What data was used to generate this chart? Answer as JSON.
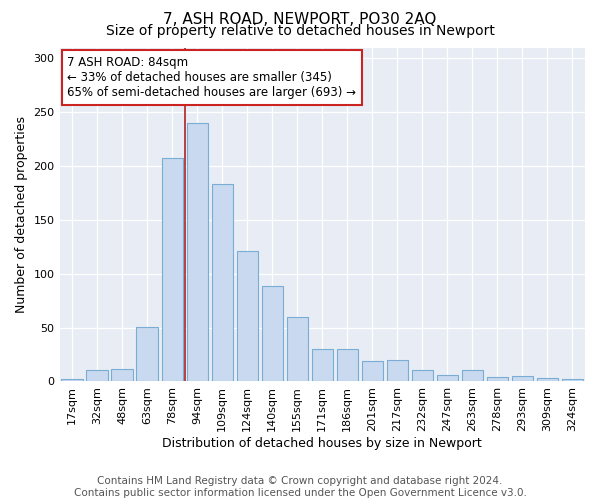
{
  "title": "7, ASH ROAD, NEWPORT, PO30 2AQ",
  "subtitle": "Size of property relative to detached houses in Newport",
  "xlabel": "Distribution of detached houses by size in Newport",
  "ylabel": "Number of detached properties",
  "footer_line1": "Contains HM Land Registry data © Crown copyright and database right 2024.",
  "footer_line2": "Contains public sector information licensed under the Open Government Licence v3.0.",
  "categories": [
    "17sqm",
    "32sqm",
    "48sqm",
    "63sqm",
    "78sqm",
    "94sqm",
    "109sqm",
    "124sqm",
    "140sqm",
    "155sqm",
    "171sqm",
    "186sqm",
    "201sqm",
    "217sqm",
    "232sqm",
    "247sqm",
    "263sqm",
    "278sqm",
    "293sqm",
    "309sqm",
    "324sqm"
  ],
  "values": [
    2,
    11,
    12,
    51,
    207,
    240,
    183,
    121,
    89,
    60,
    30,
    30,
    19,
    20,
    11,
    6,
    11,
    4,
    5,
    3,
    2
  ],
  "bar_color": "#c8d9f0",
  "bar_edge_color": "#7aadd4",
  "bar_width": 0.85,
  "vline_color": "#b22222",
  "vline_x": 4.5,
  "annotation_text": "7 ASH ROAD: 84sqm\n← 33% of detached houses are smaller (345)\n65% of semi-detached houses are larger (693) →",
  "annotation_box_color": "white",
  "annotation_box_edge_color": "#cc2222",
  "ylim": [
    0,
    310
  ],
  "yticks": [
    0,
    50,
    100,
    150,
    200,
    250,
    300
  ],
  "fig_bg_color": "#ffffff",
  "plot_bg_color": "#e8edf5",
  "grid_color": "white",
  "title_fontsize": 11,
  "subtitle_fontsize": 10,
  "xlabel_fontsize": 9,
  "ylabel_fontsize": 9,
  "tick_fontsize": 8,
  "footer_fontsize": 7.5,
  "annot_fontsize": 8.5
}
